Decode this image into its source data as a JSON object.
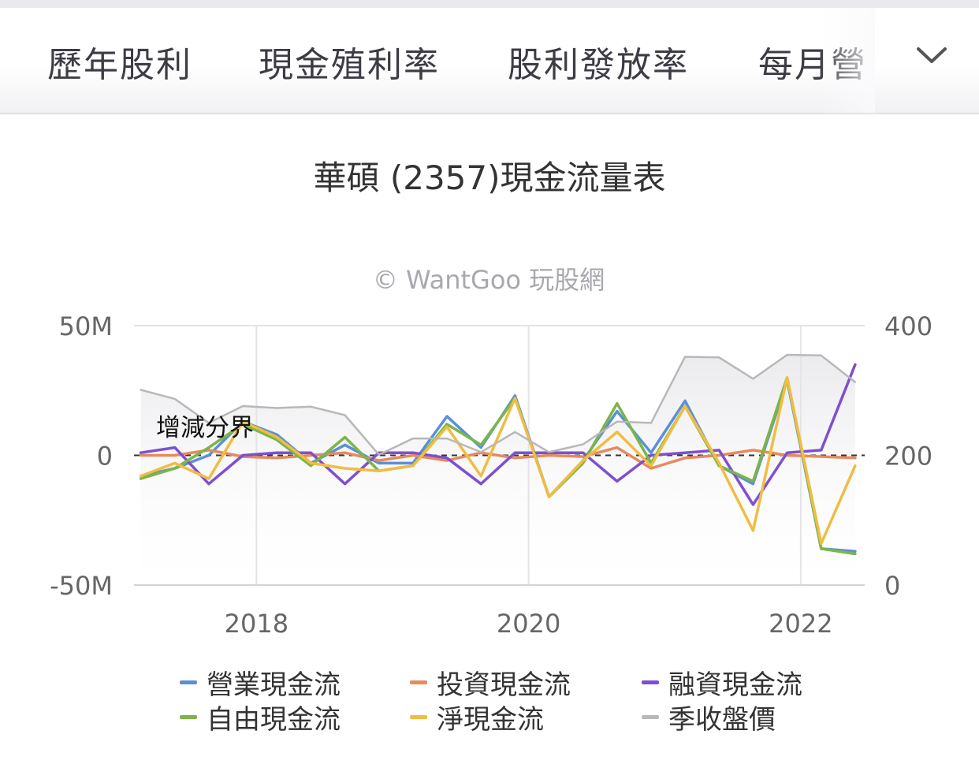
{
  "tabs": [
    {
      "label": "歷年股利"
    },
    {
      "label": "現金殖利率"
    },
    {
      "label": "股利發放率"
    },
    {
      "label": "每月營"
    }
  ],
  "title": "華碩 (2357)現金流量表",
  "watermark": "© WantGoo 玩股網",
  "zero_label": "增減分界",
  "chart_data": {
    "type": "line",
    "x": [
      2017.15,
      2017.4,
      2017.65,
      2017.9,
      2018.15,
      2018.4,
      2018.65,
      2018.9,
      2019.15,
      2019.4,
      2019.65,
      2019.9,
      2020.15,
      2020.4,
      2020.65,
      2020.9,
      2021.15,
      2021.4,
      2021.65,
      2021.9,
      2022.15,
      2022.4
    ],
    "xlim": [
      2017.1,
      2022.47
    ],
    "xticks": [
      "2018",
      "2020",
      "2022"
    ],
    "xtick_values": [
      2018,
      2020,
      2022
    ],
    "y_left": {
      "ticks": [
        "50M",
        "0",
        "-50M"
      ],
      "tick_values": [
        50,
        0,
        -50
      ],
      "range": [
        -50,
        50
      ]
    },
    "y_right": {
      "ticks": [
        "400",
        "200",
        "0"
      ],
      "tick_values": [
        400,
        200,
        0
      ],
      "range": [
        0,
        400
      ]
    },
    "series": [
      {
        "name": "營業現金流",
        "color": "#5b8fd9",
        "axis": "left",
        "values": [
          -8,
          -5,
          0,
          13,
          8,
          -3,
          4,
          -3,
          -3,
          15,
          3,
          23,
          -16,
          -2,
          17,
          1,
          21,
          -4,
          -11,
          29,
          -36,
          -37
        ]
      },
      {
        "name": "投資現金流",
        "color": "#e68a5e",
        "axis": "left",
        "values": [
          0,
          0,
          2,
          -0.5,
          -1,
          0,
          1,
          -2,
          0,
          -2,
          1,
          -1,
          0,
          -0.5,
          3,
          -5,
          -1,
          0,
          2,
          0,
          -0.5,
          -1
        ]
      },
      {
        "name": "融資現金流",
        "color": "#7e4fd1",
        "axis": "left",
        "values": [
          1,
          3,
          -11,
          0,
          1,
          1,
          -11,
          1,
          1,
          -1,
          -11,
          1,
          1,
          1,
          -10,
          0,
          1,
          2,
          -19,
          1,
          2,
          35
        ]
      },
      {
        "name": "自由現金流",
        "color": "#7ab648",
        "axis": "left",
        "values": [
          -9,
          -5,
          3,
          12,
          6,
          -4,
          7,
          -6,
          -4,
          12,
          4,
          22,
          -16,
          -3,
          20,
          -3,
          19,
          -4,
          -10,
          30,
          -36,
          -38
        ]
      },
      {
        "name": "淨現金流",
        "color": "#f0bd42",
        "axis": "left",
        "values": [
          -8,
          -3,
          -9,
          13,
          7,
          -3,
          -5,
          -6,
          -4,
          11,
          -8,
          22,
          -16,
          -2,
          9,
          -4,
          19,
          -3,
          -29,
          30,
          -34,
          -4
        ]
      },
      {
        "name": "季收盤價",
        "color": "#b8b8b8",
        "axis": "right",
        "values": [
          301,
          287,
          250,
          276,
          273,
          275,
          262,
          201,
          226,
          226,
          205,
          236,
          205,
          217,
          252,
          250,
          352,
          351,
          318,
          355,
          354,
          313
        ]
      }
    ]
  },
  "colors": {
    "axis": "#d4d4d8",
    "grid": "#e4e4e8",
    "zero_line": "#333333",
    "tick": "#666666",
    "price_fill": "#ebebee"
  }
}
